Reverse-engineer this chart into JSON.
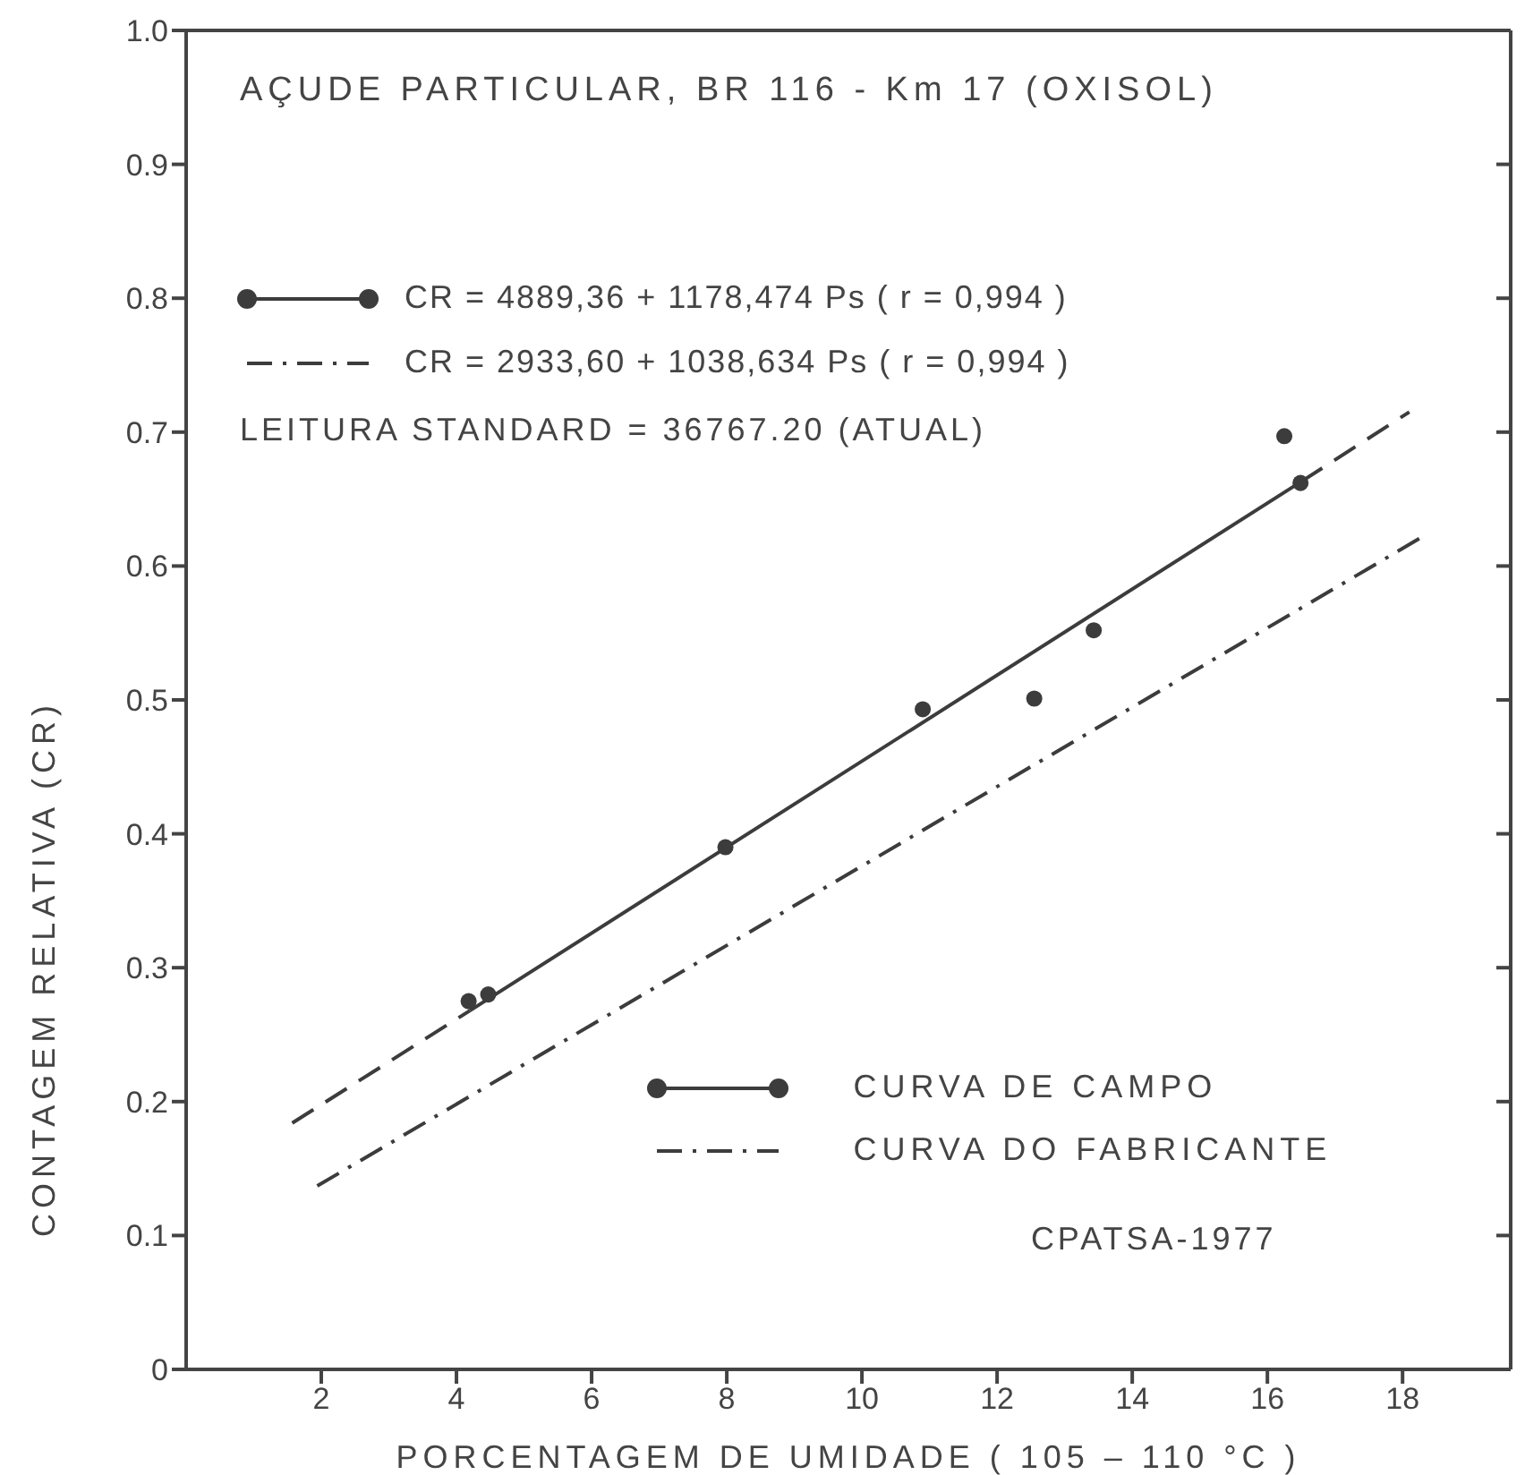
{
  "chart_data": {
    "type": "scatter",
    "title": "AÇUDE PARTICULAR, BR 116 - Km 17 (OXISOL)",
    "xlabel": "PORCENTAGEM DE UMIDADE ( 105 – 110 °C )",
    "ylabel": "CONTAGEM RELATIVA (CR)",
    "annotations": [
      "CR = 4889,36 + 1178,474 Ps ( r = 0,994 )",
      "CR = 2933,60 + 1038,634 Ps ( r = 0,994 )",
      "LEITURA STANDARD = 36767.20 (ATUAL)",
      "CPATSA-1977"
    ],
    "xlim": [
      0,
      19.6
    ],
    "xticks": [
      2,
      4,
      6,
      8,
      10,
      12,
      14,
      16,
      18
    ],
    "ylim": [
      0,
      1
    ],
    "yticks": [
      0,
      0.1,
      0.2,
      0.3,
      0.4,
      0.5,
      0.6,
      0.7,
      0.8,
      0.9,
      {
        "value": 1,
        "label": "1.0"
      }
    ],
    "legend": "bottom right",
    "marker": "circle",
    "series": [
      {
        "name": "CURVA DE CAMPO",
        "color": "#3c3c3c",
        "x": [
          4.18,
          4.47,
          7.98,
          10.9,
          12.55,
          13.43,
          16.25,
          16.49
        ],
        "values": [
          0.275,
          0.28,
          0.39,
          0.493,
          0.501,
          0.552,
          0.697,
          0.662
        ]
      },
      {
        "type": "line",
        "color": "#3c3c3c",
        "line_style": "solid",
        "marker": "none",
        "x": [
          4.2,
          16.5
        ],
        "values": [
          0.268,
          0.663
        ]
      },
      {
        "type": "line",
        "color": "#3c3c3c",
        "line_style": "dashed",
        "marker": "none",
        "x": [
          1.57,
          4.2,
          10,
          16.5,
          18.1
        ],
        "values": [
          0.184,
          0.268,
          null,
          0.663,
          0.715
        ]
      },
      {
        "name": "CURVA DO FABRICANTE",
        "type": "line",
        "color": "#3c3c3c",
        "line_style": "dashdot",
        "marker": "none",
        "x": [
          1.94,
          18.3
        ],
        "values": [
          0.137,
          0.622
        ]
      }
    ]
  }
}
